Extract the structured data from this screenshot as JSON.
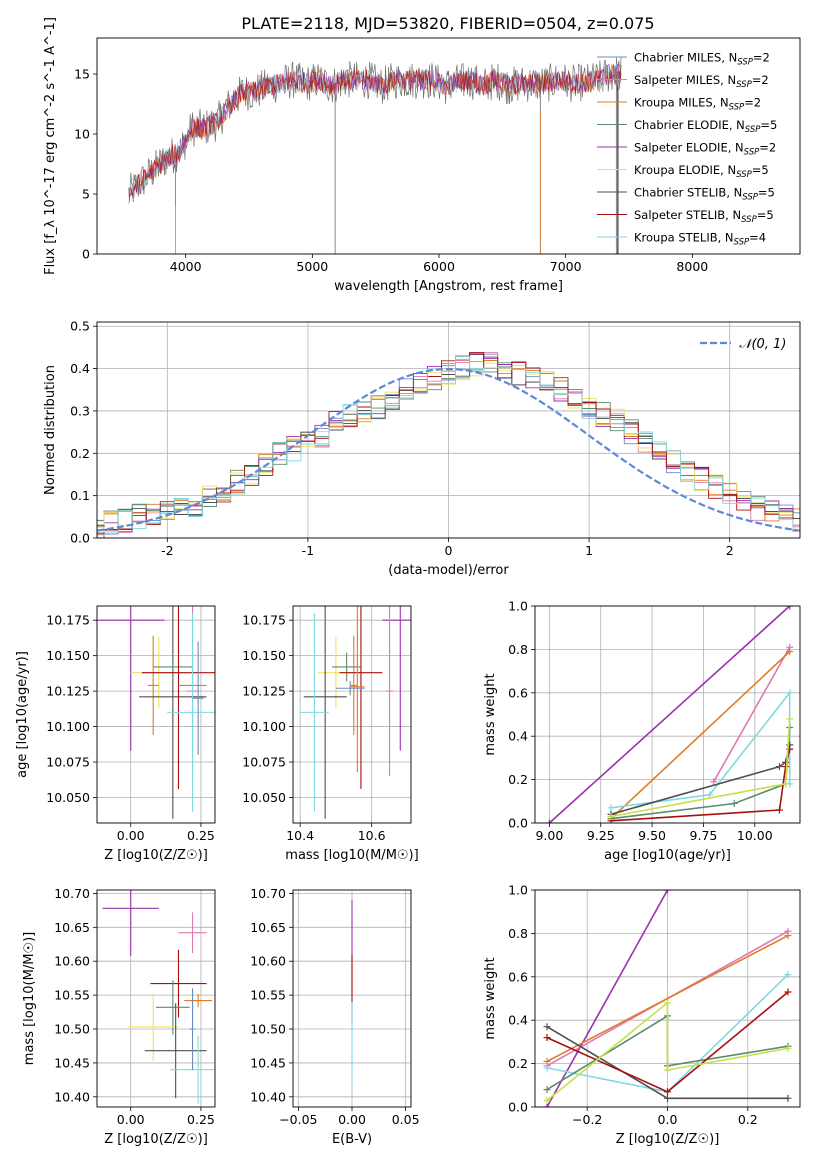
{
  "figure_title": "PLATE=2118, MJD=53820, FIBERID=0504, z=0.075",
  "colors": {
    "series": [
      "#6b8cbf",
      "#e079b0",
      "#e07b26",
      "#5b8c6e",
      "#9b30b0",
      "#f0e060",
      "#505050",
      "#aa1010",
      "#80d8e0"
    ],
    "spectrum_overlay": [
      "#6e6e6e",
      "#e07b26",
      "#80d8e0",
      "#9b30b0",
      "#aa1010"
    ],
    "normal_curve": "#5b8ad8",
    "weight_series": [
      "#9b30b0",
      "#e079b0",
      "#e07b26",
      "#80d8e0",
      "#5b8c6e",
      "#505050",
      "#aa1010",
      "#c8e048"
    ]
  },
  "chart_data": [
    {
      "id": "spectrum",
      "type": "line",
      "xlabel": "wavelength [Angstrom, rest frame]",
      "ylabel": "Flux [f_λ 10^-17 erg cm^-2 s^-1 A^-1]",
      "xlim": [
        3300,
        8850
      ],
      "ylim": [
        0,
        18
      ],
      "xticks": [
        4000,
        5000,
        6000,
        7000,
        8000
      ],
      "yticks": [
        0,
        5,
        10,
        15
      ],
      "grid": false,
      "legend_position": "right",
      "legend": [
        {
          "model": "Chabrier MILES",
          "nssp": "2"
        },
        {
          "model": "Salpeter MILES",
          "nssp": "2"
        },
        {
          "model": "Kroupa MILES",
          "nssp": "2"
        },
        {
          "model": "Chabrier ELODIE",
          "nssp": "5"
        },
        {
          "model": "Salpeter ELODIE",
          "nssp": "2"
        },
        {
          "model": "Kroupa ELODIE",
          "nssp": "5"
        },
        {
          "model": "Chabrier STELIB",
          "nssp": "5"
        },
        {
          "model": "Salpeter STELIB",
          "nssp": "5"
        },
        {
          "model": "Kroupa STELIB",
          "nssp": "4"
        }
      ],
      "continuum": {
        "x": [
          3550,
          3650,
          3750,
          3850,
          3950,
          4050,
          4150,
          4250,
          4350,
          4450,
          4550,
          4650,
          4750,
          4850,
          4950,
          5050,
          5150,
          5250,
          5350,
          5450,
          5550,
          5650,
          5750,
          5850,
          5950,
          6050,
          6150,
          6250,
          6350,
          6450,
          6550,
          6650,
          6750,
          6850,
          6950,
          7050,
          7150,
          7250,
          7350,
          7450
        ],
        "y": [
          5.0,
          6.0,
          7.0,
          8.0,
          8.5,
          10.5,
          10.5,
          11.0,
          12.5,
          13.5,
          13.5,
          14.0,
          14.2,
          14.5,
          14.2,
          14.5,
          14.0,
          14.5,
          14.5,
          14.5,
          14.0,
          14.5,
          14.5,
          14.5,
          14.5,
          14.0,
          14.3,
          14.5,
          14.0,
          14.5,
          14.0,
          14.2,
          14.2,
          14.2,
          14.5,
          14.2,
          14.3,
          14.5,
          15.0,
          15.0
        ]
      }
    },
    {
      "id": "residuals",
      "type": "histogram",
      "xlabel": "(data-model)/error",
      "ylabel": "Normed distribution",
      "xlim": [
        -2.5,
        2.5
      ],
      "ylim": [
        0,
        0.51
      ],
      "xticks": [
        -2,
        -1,
        0,
        1,
        2
      ],
      "yticks": [
        0.0,
        0.1,
        0.2,
        0.3,
        0.4,
        0.5
      ],
      "grid": true,
      "legend_position": "top-right",
      "normal_label": "𝒩(0, 1)",
      "bin_width": 0.1,
      "reference_bins": [
        0.02,
        0.025,
        0.03,
        0.035,
        0.04,
        0.05,
        0.06,
        0.07,
        0.075,
        0.08,
        0.095,
        0.11,
        0.13,
        0.15,
        0.17,
        0.2,
        0.21,
        0.22,
        0.24,
        0.27,
        0.29,
        0.3,
        0.31,
        0.33,
        0.35,
        0.36,
        0.38,
        0.39,
        0.4,
        0.41,
        0.41,
        0.4,
        0.39,
        0.38,
        0.37,
        0.35,
        0.33,
        0.31,
        0.29,
        0.28,
        0.25,
        0.23,
        0.2,
        0.18,
        0.16,
        0.14,
        0.12,
        0.1,
        0.08,
        0.07,
        0.06,
        0.05,
        0.04,
        0.035,
        0.03
      ]
    },
    {
      "id": "z-vs-age",
      "type": "errorbar",
      "xlabel": "Z [log10(Z/Z☉)]",
      "ylabel": "age [log10(age/yr)]",
      "xlim": [
        -0.12,
        0.3
      ],
      "ylim": [
        10.032,
        10.185
      ],
      "xticks": [
        0.0,
        0.25
      ],
      "yticks": [
        10.05,
        10.075,
        10.1,
        10.125,
        10.15,
        10.175
      ],
      "grid": true,
      "points": [
        {
          "x": 0.0,
          "y": 10.175,
          "xerr": 0.12,
          "yerr": 0.092,
          "series": 4
        },
        {
          "x": 0.1,
          "y": 10.138,
          "xerr": 0.1,
          "yerr": 0.025,
          "series": 5
        },
        {
          "x": 0.08,
          "y": 10.129,
          "xerr": 0.02,
          "yerr": 0.035,
          "series": 2
        },
        {
          "x": 0.15,
          "y": 10.121,
          "xerr": 0.12,
          "yerr": 0.086,
          "series": 6
        },
        {
          "x": 0.15,
          "y": 10.142,
          "xerr": 0.07,
          "yerr": 0.01,
          "series": 3
        },
        {
          "x": 0.17,
          "y": 10.138,
          "xerr": 0.13,
          "yerr": 0.082,
          "series": 7
        },
        {
          "x": 0.22,
          "y": 10.125,
          "xerr": 0.02,
          "yerr": 0.06,
          "series": 1
        },
        {
          "x": 0.22,
          "y": 10.129,
          "xerr": 0.05,
          "yerr": 0.045,
          "series": 2
        },
        {
          "x": 0.22,
          "y": 10.11,
          "xerr": 0.09,
          "yerr": 0.07,
          "series": 8
        },
        {
          "x": 0.24,
          "y": 10.12,
          "xerr": 0.02,
          "yerr": 0.04,
          "series": 0
        }
      ]
    },
    {
      "id": "mass-vs-age",
      "type": "errorbar",
      "xlabel": "mass [log10(M/M☉)]",
      "ylabel": "",
      "xlim": [
        10.38,
        10.71
      ],
      "ylim": [
        10.032,
        10.185
      ],
      "xticks": [
        10.4,
        10.6
      ],
      "yticks": [
        10.05,
        10.075,
        10.1,
        10.125,
        10.15,
        10.175
      ],
      "grid": true,
      "points": [
        {
          "x": 10.68,
          "y": 10.175,
          "xerr": 0.05,
          "yerr": 0.092,
          "series": 4
        },
        {
          "x": 10.5,
          "y": 10.138,
          "xerr": 0.05,
          "yerr": 0.025,
          "series": 5
        },
        {
          "x": 10.55,
          "y": 10.129,
          "xerr": 0.01,
          "yerr": 0.035,
          "series": 2
        },
        {
          "x": 10.47,
          "y": 10.121,
          "xerr": 0.06,
          "yerr": 0.086,
          "series": 6
        },
        {
          "x": 10.53,
          "y": 10.142,
          "xerr": 0.04,
          "yerr": 0.01,
          "series": 3
        },
        {
          "x": 10.57,
          "y": 10.138,
          "xerr": 0.06,
          "yerr": 0.082,
          "series": 7
        },
        {
          "x": 10.65,
          "y": 10.125,
          "xerr": 0.01,
          "yerr": 0.06,
          "series": 1
        },
        {
          "x": 10.54,
          "y": 10.127,
          "xerr": 0.04,
          "yerr": 0.005,
          "series": 0
        },
        {
          "x": 10.44,
          "y": 10.11,
          "xerr": 0.04,
          "yerr": 0.07,
          "series": 8
        },
        {
          "x": 10.56,
          "y": 10.128,
          "xerr": 0.02,
          "yerr": 0.06,
          "series": 2
        }
      ]
    },
    {
      "id": "age-vs-weight",
      "type": "line",
      "xlabel": "age [log10(age/yr)]",
      "ylabel": "mass weight",
      "xlim": [
        8.93,
        10.22
      ],
      "ylim": [
        0,
        1
      ],
      "xticks": [
        9.0,
        9.25,
        9.5,
        9.75,
        10.0
      ],
      "ytick_labels": [
        "0.0",
        "0.2",
        "0.4",
        "0.6",
        "0.8",
        "1.0"
      ],
      "xtick_labels": [
        "9.00",
        "9.25",
        "9.50",
        "9.75",
        "10.00"
      ],
      "grid": true,
      "series": [
        {
          "color_index": 0,
          "x": [
            9.0,
            10.17
          ],
          "y": [
            0.0,
            1.0
          ]
        },
        {
          "color_index": 1,
          "x": [
            9.8,
            10.17
          ],
          "y": [
            0.19,
            0.81
          ]
        },
        {
          "color_index": 2,
          "x": [
            9.3,
            10.17
          ],
          "y": [
            0.02,
            0.79
          ]
        },
        {
          "color_index": 3,
          "x": [
            9.3,
            9.78,
            10.17,
            10.17
          ],
          "y": [
            0.07,
            0.13,
            0.6,
            0.18
          ]
        },
        {
          "color_index": 4,
          "x": [
            9.3,
            9.9,
            10.15,
            10.17
          ],
          "y": [
            0.02,
            0.09,
            0.18,
            0.44
          ]
        },
        {
          "color_index": 5,
          "x": [
            9.3,
            10.12,
            10.15,
            10.17
          ],
          "y": [
            0.04,
            0.26,
            0.28,
            0.36
          ]
        },
        {
          "color_index": 6,
          "x": [
            9.3,
            10.12,
            10.15,
            10.17
          ],
          "y": [
            0.01,
            0.06,
            0.26,
            0.34
          ]
        },
        {
          "color_index": 7,
          "x": [
            9.3,
            10.15,
            10.17
          ],
          "y": [
            0.03,
            0.18,
            0.48
          ]
        }
      ]
    },
    {
      "id": "z-vs-mass",
      "type": "errorbar",
      "xlabel": "Z [log10(Z/Z☉)]",
      "ylabel": "mass [log10(M/M☉)]",
      "xlim": [
        -0.12,
        0.3
      ],
      "ylim": [
        10.385,
        10.705
      ],
      "xticks": [
        0.0,
        0.25
      ],
      "yticks": [
        10.4,
        10.45,
        10.5,
        10.55,
        10.6,
        10.65,
        10.7
      ],
      "grid": true,
      "points": [
        {
          "x": 0.0,
          "y": 10.678,
          "xerr": 0.1,
          "yerr": 0.07,
          "series": 4
        },
        {
          "x": 0.22,
          "y": 10.642,
          "xerr": 0.05,
          "yerr": 0.03,
          "series": 1
        },
        {
          "x": 0.17,
          "y": 10.567,
          "xerr": 0.1,
          "yerr": 0.05,
          "series": 7
        },
        {
          "x": 0.24,
          "y": 10.542,
          "xerr": 0.05,
          "yerr": 0.01,
          "series": 2
        },
        {
          "x": 0.15,
          "y": 10.532,
          "xerr": 0.06,
          "yerr": 0.04,
          "series": 3
        },
        {
          "x": 0.08,
          "y": 10.503,
          "xerr": 0.09,
          "yerr": 0.05,
          "series": 5
        },
        {
          "x": 0.16,
          "y": 10.468,
          "xerr": 0.11,
          "yerr": 0.07,
          "series": 6
        },
        {
          "x": 0.24,
          "y": 10.44,
          "xerr": 0.1,
          "yerr": 0.05,
          "series": 8
        },
        {
          "x": 0.22,
          "y": 10.5,
          "xerr": 0.01,
          "yerr": 0.06,
          "series": 0
        }
      ]
    },
    {
      "id": "ebv-vs-mass",
      "type": "errorbar",
      "xlabel": "E(B-V)",
      "ylabel": "",
      "xlim": [
        -0.055,
        0.055
      ],
      "ylim": [
        10.385,
        10.705
      ],
      "xticks": [
        -0.05,
        0.0,
        0.05
      ],
      "xtick_labels": [
        "−0.05",
        "0.00",
        "0.05"
      ],
      "yticks": [
        10.4,
        10.45,
        10.5,
        10.55,
        10.6,
        10.65,
        10.7
      ],
      "grid": true,
      "points": [
        {
          "x": 0.0,
          "y": 10.62,
          "xerr": 0.0,
          "yerr": 0.07,
          "series": 4
        },
        {
          "x": 0.0,
          "y": 10.56,
          "xerr": 0.0,
          "yerr": 0.05,
          "series": 7
        },
        {
          "x": 0.0,
          "y": 10.48,
          "xerr": 0.0,
          "yerr": 0.06,
          "series": 8
        }
      ]
    },
    {
      "id": "z-vs-weight",
      "type": "line",
      "xlabel": "Z [log10(Z/Z☉)]",
      "ylabel": "mass weight",
      "xlim": [
        -0.33,
        0.33
      ],
      "ylim": [
        0,
        1
      ],
      "xtick_labels": [
        "−0.2",
        "0.0",
        "0.2"
      ],
      "xticks": [
        -0.2,
        0.0,
        0.2
      ],
      "ytick_labels": [
        "0.0",
        "0.2",
        "0.4",
        "0.6",
        "0.8",
        "1.0"
      ],
      "grid": true,
      "series": [
        {
          "color_index": 0,
          "x": [
            -0.3,
            0.0
          ],
          "y": [
            0.0,
            1.0
          ]
        },
        {
          "color_index": 1,
          "x": [
            -0.3,
            0.3
          ],
          "y": [
            0.19,
            0.81
          ]
        },
        {
          "color_index": 2,
          "x": [
            -0.3,
            0.3
          ],
          "y": [
            0.21,
            0.79
          ]
        },
        {
          "color_index": 3,
          "x": [
            -0.3,
            0.0,
            0.3
          ],
          "y": [
            0.18,
            0.07,
            0.61
          ]
        },
        {
          "color_index": 4,
          "x": [
            -0.3,
            0.0,
            0.0,
            0.3
          ],
          "y": [
            0.08,
            0.42,
            0.19,
            0.28
          ]
        },
        {
          "color_index": 5,
          "x": [
            -0.3,
            0.0,
            0.3
          ],
          "y": [
            0.37,
            0.04,
            0.04
          ]
        },
        {
          "color_index": 6,
          "x": [
            -0.3,
            0.0,
            0.3
          ],
          "y": [
            0.32,
            0.07,
            0.53
          ]
        },
        {
          "color_index": 7,
          "x": [
            -0.3,
            0.0,
            0.0,
            0.3
          ],
          "y": [
            0.03,
            0.48,
            0.17,
            0.27
          ]
        }
      ]
    }
  ]
}
